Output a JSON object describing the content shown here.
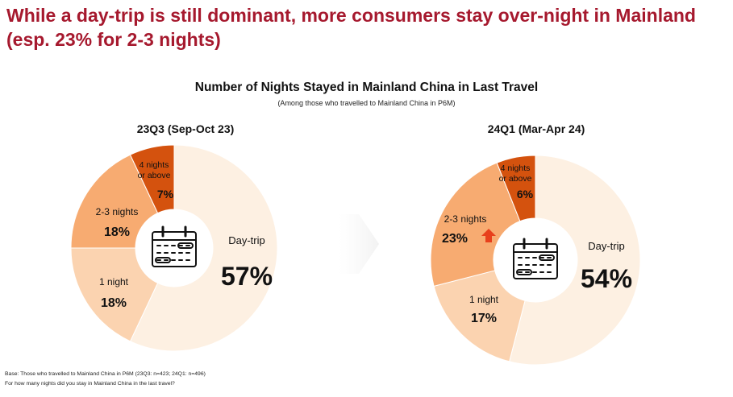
{
  "headline": "While a day-trip is still dominant, more consumers stay over-night in Mainland (esp. 23% for 2-3 nights)",
  "chart_data": {
    "type": "pie",
    "title": "Number of Nights Stayed in Mainland China in Last Travel",
    "subtitle": "(Among those who travelled to Mainland China in P6M)",
    "categories": [
      "Day-trip",
      "1 night",
      "2-3 nights",
      "4 nights or above"
    ],
    "series": [
      {
        "name": "23Q3 (Sep-Oct 23)",
        "values": [
          57,
          18,
          18,
          7
        ],
        "labels": [
          "57%",
          "18%",
          "18%",
          "7%"
        ]
      },
      {
        "name": "24Q1 (Mar-Apr 24)",
        "values": [
          54,
          17,
          23,
          6
        ],
        "labels": [
          "54%",
          "17%",
          "23%",
          "6%"
        ]
      }
    ],
    "colors": [
      "#fdf0e2",
      "#fbd3b0",
      "#f7ab71",
      "#d4520e"
    ],
    "increase_marker": {
      "series": "24Q1 (Mar-Apr 24)",
      "category": "2-3 nights",
      "color": "#e8401c",
      "icon": "up-arrow-icon"
    }
  },
  "footnotes": {
    "base": "Base: Those who travelled to Mainland China in P6M (23Q3: n=423; 24Q1: n=496)",
    "question": "For how many nights did you stay in Mainland China in the last travel?"
  }
}
